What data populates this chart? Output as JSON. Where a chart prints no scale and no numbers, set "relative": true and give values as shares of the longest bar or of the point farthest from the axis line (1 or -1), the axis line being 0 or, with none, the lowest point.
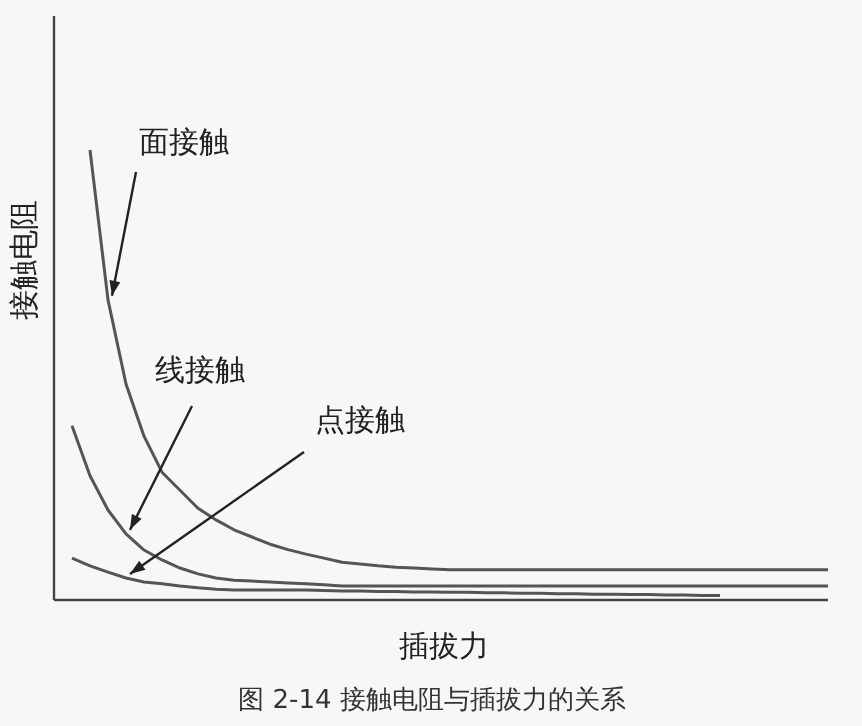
{
  "chart_data": {
    "type": "line",
    "relative": true,
    "title": "图 2-14 接触电阻与插拔力的关系",
    "xlabel": "插拔力",
    "ylabel": "接触电阻",
    "marker": "none",
    "line_style": "solid",
    "categories": [
      null,
      null,
      null,
      null,
      null,
      null,
      null,
      null,
      null,
      null,
      null,
      null,
      null,
      null,
      null,
      null,
      null,
      null,
      null,
      null,
      null,
      null,
      null,
      null,
      null,
      null,
      null,
      null,
      null,
      null,
      null,
      null,
      null,
      null,
      null,
      null,
      null,
      null,
      null,
      null,
      null,
      null,
      null,
      null
    ],
    "series": [
      {
        "name": "面接触",
        "color": "#555555",
        "values": [
          null,
          null,
          1.0,
          0.667,
          0.48,
          0.364,
          0.284,
          0.244,
          0.204,
          0.178,
          0.156,
          0.14,
          0.124,
          0.112,
          0.102,
          0.093,
          0.084,
          0.08,
          0.076,
          0.073,
          0.071,
          0.069,
          0.067,
          0.067,
          0.067,
          0.067,
          0.067,
          0.067,
          0.067,
          0.067,
          0.067,
          0.067,
          0.067,
          0.067,
          0.067,
          0.067,
          0.067,
          0.067,
          0.067,
          0.067,
          0.067,
          0.067,
          0.067,
          0.067
        ]
      },
      {
        "name": "线接触",
        "color": "#555555",
        "values": [
          null,
          0.387,
          0.276,
          0.2,
          0.147,
          0.111,
          0.089,
          0.071,
          0.058,
          0.049,
          0.044,
          0.042,
          0.04,
          0.038,
          0.036,
          0.034,
          0.031,
          0.031,
          0.031,
          0.031,
          0.031,
          0.031,
          0.031,
          0.031,
          0.031,
          0.031,
          0.031,
          0.031,
          0.031,
          0.031,
          0.031,
          0.031,
          0.031,
          0.031,
          0.031,
          0.031,
          0.031,
          0.031,
          0.031,
          0.031,
          0.031,
          0.031,
          0.031,
          0.031
        ]
      },
      {
        "name": "点接触",
        "color": "#555555",
        "values": [
          null,
          0.093,
          0.076,
          0.062,
          0.049,
          0.04,
          0.036,
          0.031,
          0.027,
          0.024,
          0.022,
          0.022,
          0.022,
          0.022,
          0.022,
          0.021,
          0.02,
          0.02,
          0.019,
          0.019,
          0.018,
          0.018,
          0.017,
          0.017,
          0.016,
          0.016,
          0.015,
          0.015,
          0.014,
          0.014,
          0.013,
          0.013,
          0.012,
          0.012,
          0.011,
          0.011,
          0.01,
          0.01,
          null,
          null,
          null,
          null,
          null,
          null
        ]
      }
    ]
  }
}
